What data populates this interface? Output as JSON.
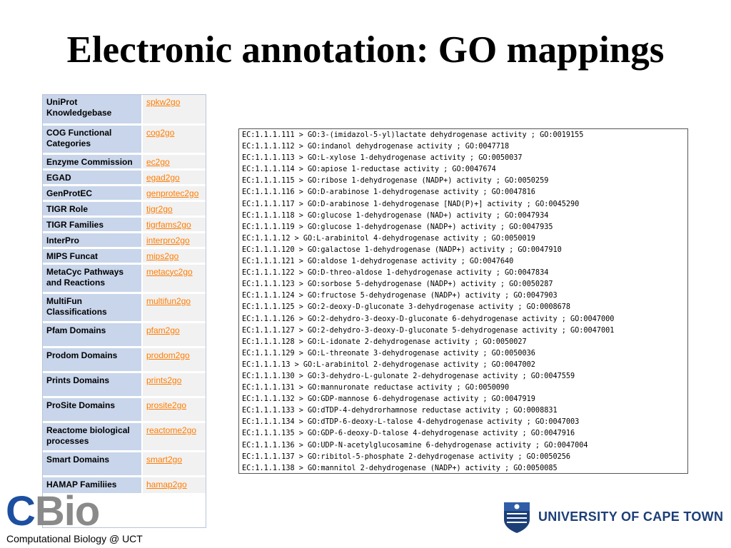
{
  "slide": {
    "title": "Electronic annotation: GO mappings"
  },
  "mapping_table": {
    "rows": [
      {
        "name": "UniProt Knowledgebase",
        "link": "spkw2go"
      },
      {
        "name": "COG Functional Categories",
        "link": "cog2go"
      },
      {
        "name": "Enzyme Commission",
        "link": "ec2go"
      },
      {
        "name": "EGAD",
        "link": "egad2go"
      },
      {
        "name": "GenProtEC",
        "link": "genprotec2go"
      },
      {
        "name": "TIGR Role",
        "link": "tigr2go"
      },
      {
        "name": "TIGR Families",
        "link": "tigrfams2go"
      },
      {
        "name": "InterPro",
        "link": "interpro2go"
      },
      {
        "name": "MIPS Funcat",
        "link": "mips2go"
      },
      {
        "name": "MetaCyc Pathways and Reactions",
        "link": "metacyc2go"
      },
      {
        "name": "MultiFun Classifications",
        "link": "multifun2go"
      },
      {
        "name": "Pfam Domains",
        "link": "pfam2go"
      },
      {
        "name": "Prodom Domains",
        "link": "prodom2go"
      },
      {
        "name": "Prints Domains",
        "link": "prints2go"
      },
      {
        "name": "ProSite Domains",
        "link": "prosite2go"
      },
      {
        "name": "Reactome biological processes",
        "link": "reactome2go"
      },
      {
        "name": "Smart Domains",
        "link": "smart2go"
      },
      {
        "name": "HAMAP Familiies",
        "link": "hamap2go"
      }
    ]
  },
  "ec2go_lines": [
    "EC:1.1.1.111 > GO:3-(imidazol-5-yl)lactate dehydrogenase activity ; GO:0019155",
    "EC:1.1.1.112 > GO:indanol dehydrogenase activity ; GO:0047718",
    "EC:1.1.1.113 > GO:L-xylose 1-dehydrogenase activity ; GO:0050037",
    "EC:1.1.1.114 > GO:apiose 1-reductase activity ; GO:0047674",
    "EC:1.1.1.115 > GO:ribose 1-dehydrogenase (NADP+) activity ; GO:0050259",
    "EC:1.1.1.116 > GO:D-arabinose 1-dehydrogenase activity ; GO:0047816",
    "EC:1.1.1.117 > GO:D-arabinose 1-dehydrogenase [NAD(P)+] activity ; GO:0045290",
    "EC:1.1.1.118 > GO:glucose 1-dehydrogenase (NAD+) activity ; GO:0047934",
    "EC:1.1.1.119 > GO:glucose 1-dehydrogenase (NADP+) activity ; GO:0047935",
    "EC:1.1.1.12 > GO:L-arabinitol 4-dehydrogenase activity ; GO:0050019",
    "EC:1.1.1.120 > GO:galactose 1-dehydrogenase (NADP+) activity ; GO:0047910",
    "EC:1.1.1.121 > GO:aldose 1-dehydrogenase activity ; GO:0047640",
    "EC:1.1.1.122 > GO:D-threo-aldose 1-dehydrogenase activity ; GO:0047834",
    "EC:1.1.1.123 > GO:sorbose 5-dehydrogenase (NADP+) activity ; GO:0050287",
    "EC:1.1.1.124 > GO:fructose 5-dehydrogenase (NADP+) activity ; GO:0047903",
    "EC:1.1.1.125 > GO:2-deoxy-D-gluconate 3-dehydrogenase activity ; GO:0008678",
    "EC:1.1.1.126 > GO:2-dehydro-3-deoxy-D-gluconate 6-dehydrogenase activity ; GO:0047000",
    "EC:1.1.1.127 > GO:2-dehydro-3-deoxy-D-gluconate 5-dehydrogenase activity ; GO:0047001",
    "EC:1.1.1.128 > GO:L-idonate 2-dehydrogenase activity ; GO:0050027",
    "EC:1.1.1.129 > GO:L-threonate 3-dehydrogenase activity ; GO:0050036",
    "EC:1.1.1.13 > GO:L-arabinitol 2-dehydrogenase activity ; GO:0047002",
    "EC:1.1.1.130 > GO:3-dehydro-L-gulonate 2-dehydrogenase activity ; GO:0047559",
    "EC:1.1.1.131 > GO:mannuronate reductase activity ; GO:0050090",
    "EC:1.1.1.132 > GO:GDP-mannose 6-dehydrogenase activity ; GO:0047919",
    "EC:1.1.1.133 > GO:dTDP-4-dehydrorhamnose reductase activity ; GO:0008831",
    "EC:1.1.1.134 > GO:dTDP-6-deoxy-L-talose 4-dehydrogenase activity ; GO:0047003",
    "EC:1.1.1.135 > GO:GDP-6-deoxy-D-talose 4-dehydrogenase activity ; GO:0047916",
    "EC:1.1.1.136 > GO:UDP-N-acetylglucosamine 6-dehydrogenase activity ; GO:0047004",
    "EC:1.1.1.137 > GO:ribitol-5-phosphate 2-dehydrogenase activity ; GO:0050256",
    "EC:1.1.1.138 > GO:mannitol 2-dehydrogenase (NADP+) activity ; GO:0050085"
  ],
  "logos": {
    "cbio_letters": "CBio",
    "cbio_caption": "Computational Biology   @ UCT",
    "uct_name": "UNIVERSITY OF CAPE TOWN"
  }
}
